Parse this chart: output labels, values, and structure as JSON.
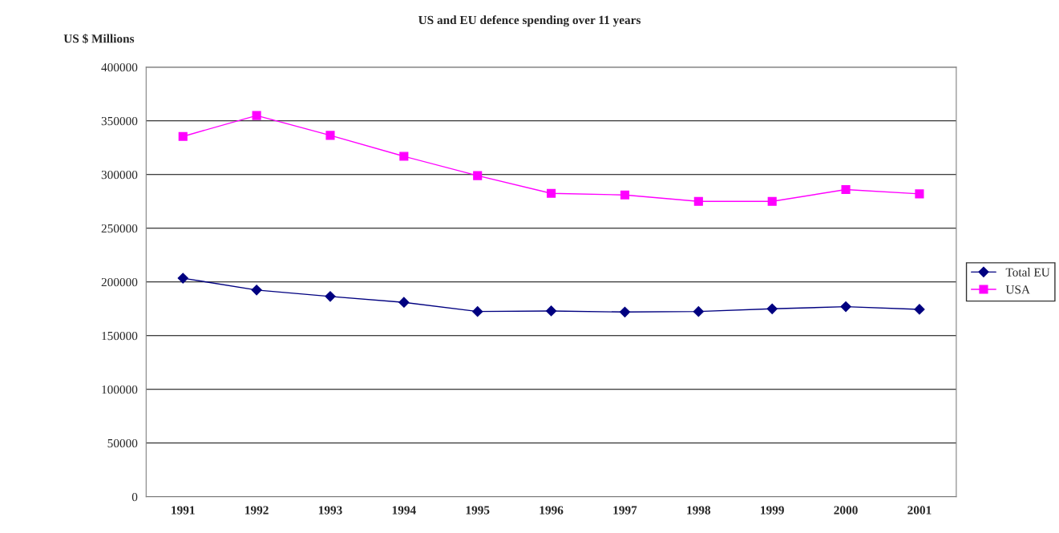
{
  "chart_data": {
    "type": "line",
    "title": "US and EU defence spending over 11 years",
    "ylabel": "US $ Millions",
    "categories": [
      "1991",
      "1992",
      "1993",
      "1994",
      "1995",
      "1996",
      "1997",
      "1998",
      "1999",
      "2000",
      "2001"
    ],
    "series": [
      {
        "name": "Total EU",
        "color": "#000080",
        "marker": "diamond",
        "values": [
          203500,
          192500,
          186500,
          181000,
          172500,
          173000,
          172000,
          172500,
          175000,
          177000,
          174500
        ]
      },
      {
        "name": "USA",
        "color": "#ff00ff",
        "marker": "square",
        "values": [
          335500,
          355000,
          336500,
          317000,
          299000,
          282500,
          281000,
          275000,
          275000,
          286000,
          282000
        ]
      }
    ],
    "ylim": [
      0,
      400000
    ],
    "yticks": [
      0,
      50000,
      100000,
      150000,
      200000,
      250000,
      300000,
      350000,
      400000
    ],
    "grid": "y",
    "legend": "right"
  }
}
